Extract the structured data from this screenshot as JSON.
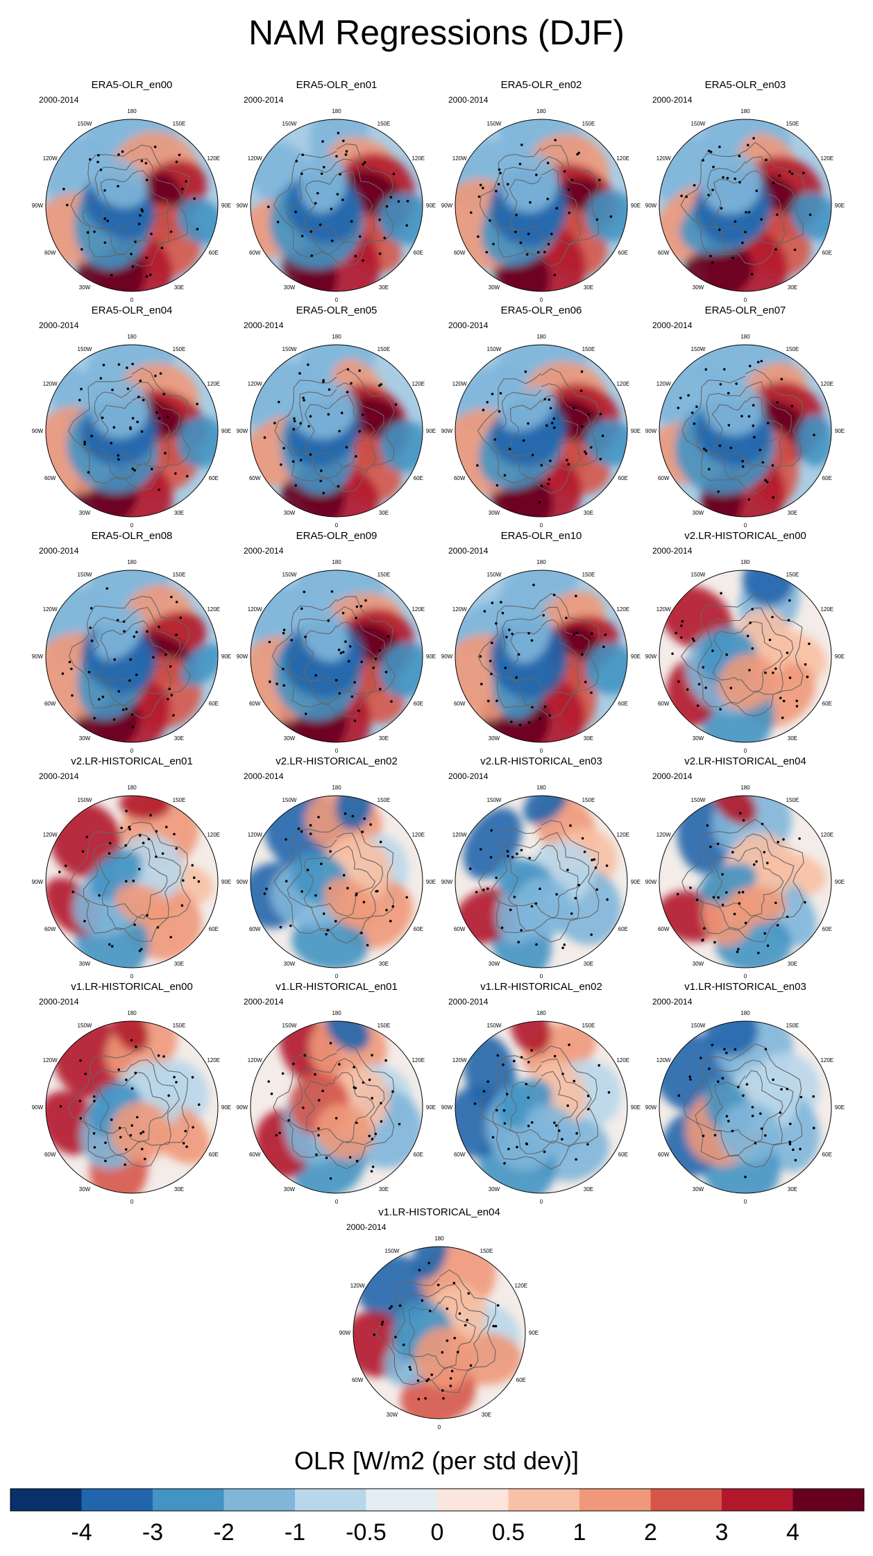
{
  "figure": {
    "title": "NAM Regressions (DJF)",
    "period_label": "2000-2014"
  },
  "chart_data": {
    "type": "heatmap",
    "title": "NAM Regressions (DJF)",
    "projection": "north polar stereographic",
    "variable": "OLR",
    "units": "W/m2 (per std dev)",
    "period": "2000-2014",
    "season": "DJF",
    "stippling": "statistically significant regions",
    "panels": [
      {
        "name": "ERA5-OLR_en00",
        "pattern": "era5"
      },
      {
        "name": "ERA5-OLR_en01",
        "pattern": "era5"
      },
      {
        "name": "ERA5-OLR_en02",
        "pattern": "era5"
      },
      {
        "name": "ERA5-OLR_en03",
        "pattern": "era5"
      },
      {
        "name": "ERA5-OLR_en04",
        "pattern": "era5"
      },
      {
        "name": "ERA5-OLR_en05",
        "pattern": "era5"
      },
      {
        "name": "ERA5-OLR_en06",
        "pattern": "era5"
      },
      {
        "name": "ERA5-OLR_en07",
        "pattern": "era5"
      },
      {
        "name": "ERA5-OLR_en08",
        "pattern": "era5"
      },
      {
        "name": "ERA5-OLR_en09",
        "pattern": "era5"
      },
      {
        "name": "ERA5-OLR_en10",
        "pattern": "era5"
      },
      {
        "name": "v2.LR-HISTORICAL_en00",
        "pattern": "model"
      },
      {
        "name": "v2.LR-HISTORICAL_en01",
        "pattern": "model"
      },
      {
        "name": "v2.LR-HISTORICAL_en02",
        "pattern": "model"
      },
      {
        "name": "v2.LR-HISTORICAL_en03",
        "pattern": "model"
      },
      {
        "name": "v2.LR-HISTORICAL_en04",
        "pattern": "model"
      },
      {
        "name": "v1.LR-HISTORICAL_en00",
        "pattern": "model"
      },
      {
        "name": "v1.LR-HISTORICAL_en01",
        "pattern": "model"
      },
      {
        "name": "v1.LR-HISTORICAL_en02",
        "pattern": "model"
      },
      {
        "name": "v1.LR-HISTORICAL_en03",
        "pattern": "model"
      },
      {
        "name": "v1.LR-HISTORICAL_en04",
        "pattern": "model"
      }
    ],
    "longitude_labels": [
      "180",
      "150E",
      "120E",
      "90E",
      "60E",
      "30E",
      "0",
      "30W",
      "60W",
      "90W",
      "120W",
      "150W"
    ],
    "colorbar": {
      "title": "OLR [W/m2 (per std dev)]",
      "tick_labels": [
        "-4",
        "-3",
        "-2",
        "-1",
        "-0.5",
        "0",
        "0.5",
        "1",
        "2",
        "3",
        "4"
      ],
      "colors": [
        "#08306b",
        "#2166ac",
        "#4393c3",
        "#7fb6da",
        "#b9d7ea",
        "#e3edf4",
        "#fbe5dc",
        "#f8c0a4",
        "#f0997a",
        "#d6574a",
        "#b2182b",
        "#67001f"
      ]
    }
  }
}
